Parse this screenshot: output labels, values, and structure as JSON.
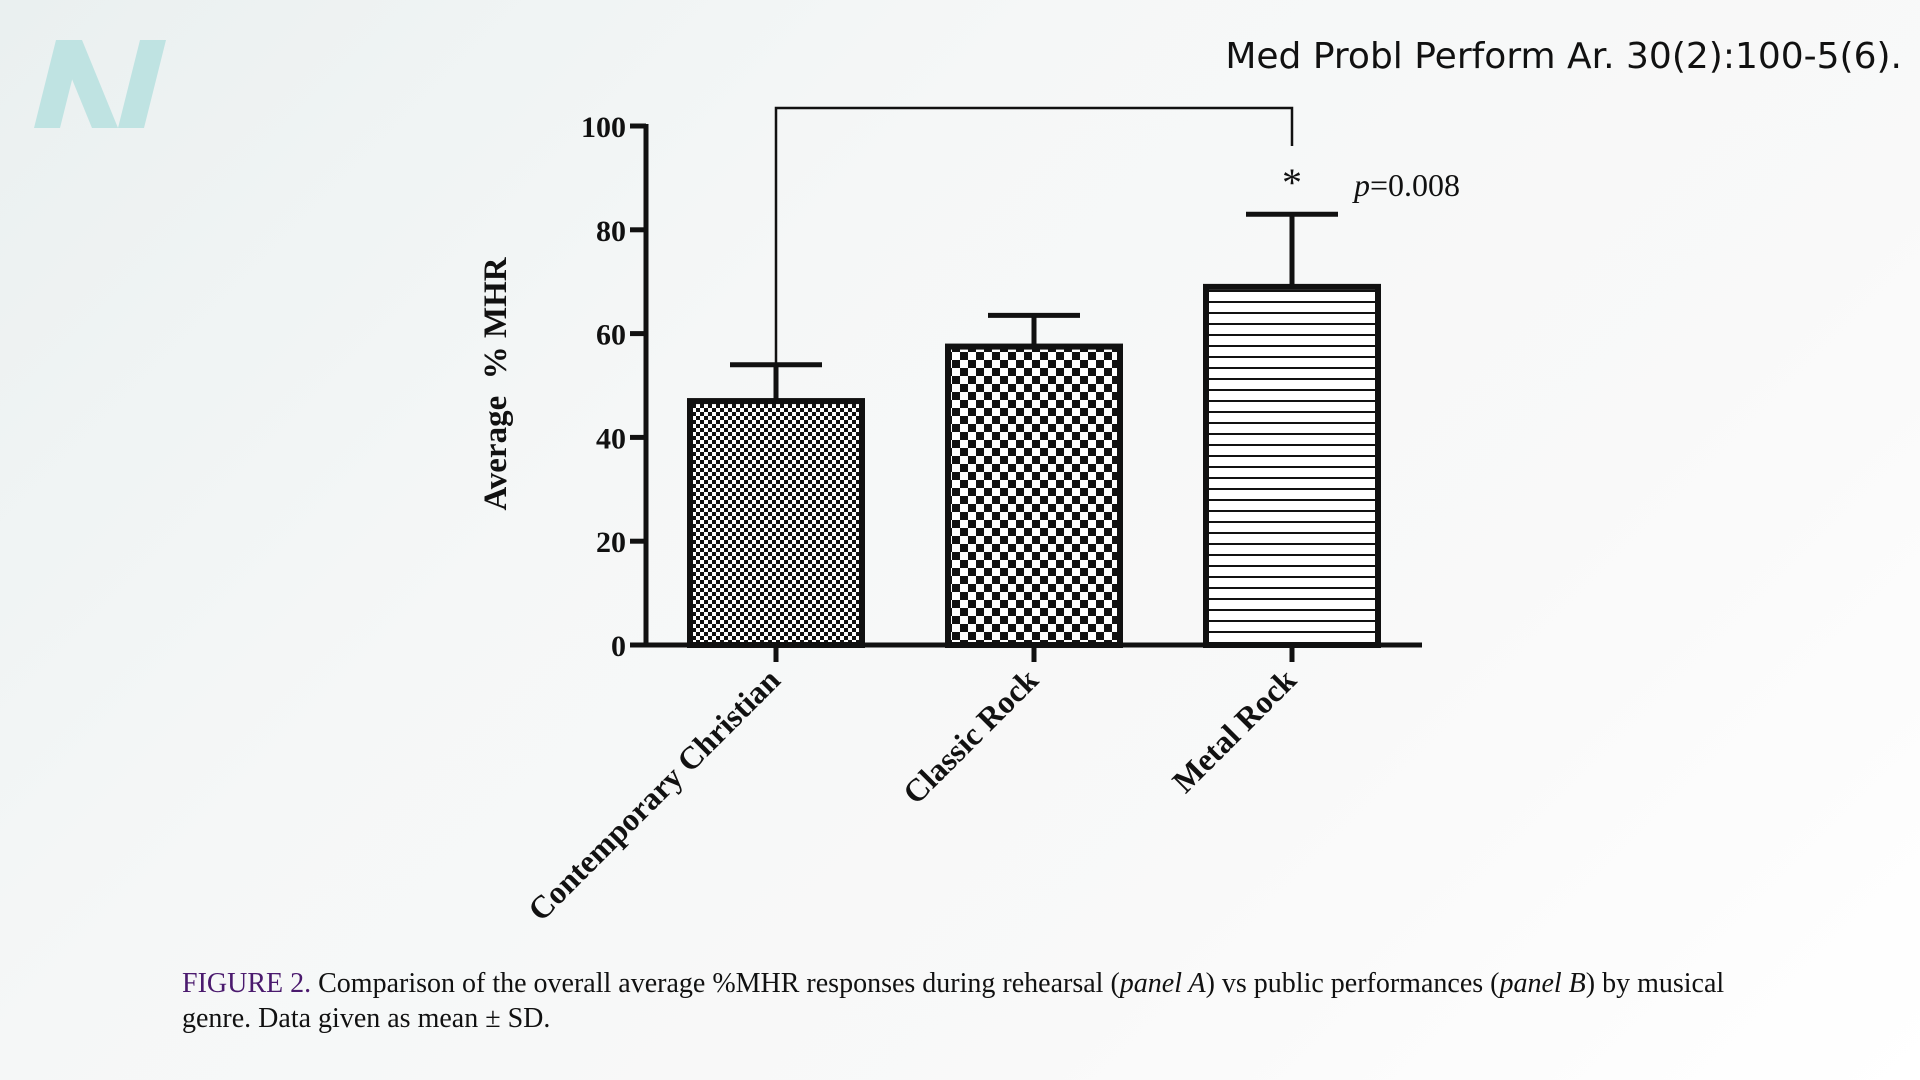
{
  "citation": "Med Probl Perform Ar. 30(2):100-5(6).",
  "logo": {
    "icon": "journal-n-logo",
    "color": "#bfe3e2"
  },
  "chart_data": {
    "type": "bar",
    "title": "",
    "xlabel": "",
    "ylabel": "Average  % MHR",
    "ylim": [
      0,
      100
    ],
    "yticks": [
      0,
      20,
      40,
      60,
      80,
      100
    ],
    "categories": [
      "Contemporary Christian",
      "Classic Rock",
      "Metal Rock"
    ],
    "values": [
      47,
      57.5,
      69
    ],
    "error_upper": [
      54,
      63.5,
      83
    ],
    "patterns": [
      "fine-checker",
      "coarse-checker",
      "horizontal-lines"
    ],
    "significance": {
      "from": "Contemporary Christian",
      "to": "Metal Rock",
      "marker": "*",
      "p_prefix": "p",
      "p_value": "=0.008"
    }
  },
  "caption": {
    "label": "FIGURE 2.",
    "text_1": " Comparison of the overall average %MHR responses during rehearsal (",
    "panel_a": "panel A",
    "text_2": ") vs public performances (",
    "panel_b": "panel B",
    "text_3": ") by musical genre. Data given as mean ± SD."
  }
}
